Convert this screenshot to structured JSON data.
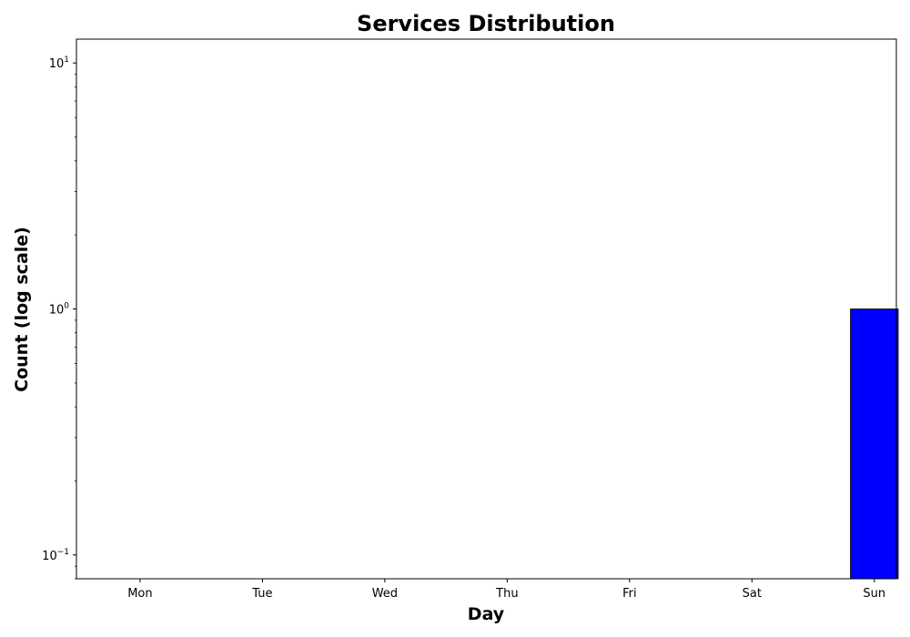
{
  "chart_data": {
    "type": "bar",
    "title": "Services Distribution",
    "xlabel": "Day",
    "ylabel": "Count (log scale)",
    "categories": [
      "Mon",
      "Tue",
      "Wed",
      "Thu",
      "Fri",
      "Sat",
      "Sun"
    ],
    "values": [
      0,
      0,
      0,
      0,
      0,
      0,
      1
    ],
    "yscale": "log",
    "ylim": [
      0.08,
      12.5
    ],
    "yticks": [
      {
        "value": 0.1,
        "base": "10",
        "exp": "−1"
      },
      {
        "value": 1,
        "base": "10",
        "exp": "0"
      },
      {
        "value": 10,
        "base": "10",
        "exp": "1"
      }
    ],
    "grid": false,
    "legend": "none",
    "bar_color": "#0000ff",
    "bar_edge_color": "#000000"
  }
}
